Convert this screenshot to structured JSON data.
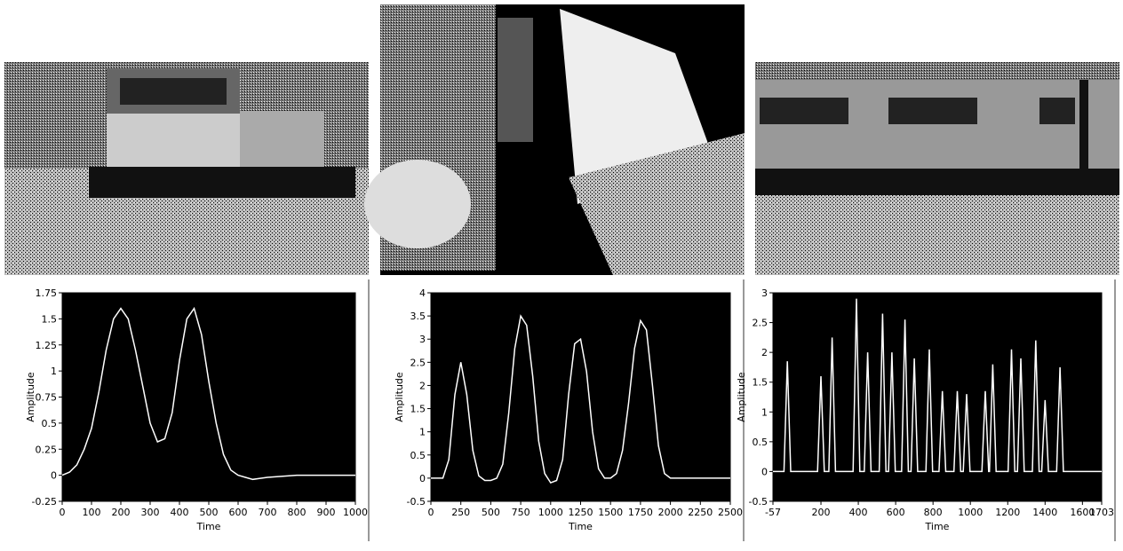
{
  "chart_data": [
    {
      "type": "line",
      "xlabel": "Time",
      "ylabel": "Amplitude",
      "color": "#ffffff",
      "x": [
        0,
        25,
        50,
        75,
        100,
        125,
        150,
        175,
        200,
        225,
        250,
        275,
        300,
        325,
        350,
        375,
        400,
        425,
        450,
        475,
        500,
        525,
        550,
        575,
        600,
        625,
        650,
        675,
        700,
        800,
        900,
        1000
      ],
      "values": [
        0,
        0.03,
        0.1,
        0.25,
        0.45,
        0.8,
        1.2,
        1.5,
        1.6,
        1.5,
        1.2,
        0.85,
        0.5,
        0.32,
        0.35,
        0.6,
        1.1,
        1.5,
        1.6,
        1.35,
        0.9,
        0.5,
        0.2,
        0.05,
        0,
        -0.02,
        -0.04,
        -0.03,
        -0.02,
        0,
        0,
        0
      ],
      "xlim": [
        0,
        1000
      ],
      "ylim": [
        -0.25,
        1.75
      ],
      "xticks": [
        0,
        100,
        200,
        300,
        400,
        500,
        600,
        700,
        800,
        900,
        1000
      ],
      "yticks": [
        -0.25,
        0,
        0.25,
        0.5,
        0.75,
        1,
        1.25,
        1.5,
        1.75
      ]
    },
    {
      "type": "line",
      "xlabel": "Time",
      "ylabel": "Amplitude",
      "color": "#ffffff",
      "x": [
        0,
        100,
        150,
        200,
        250,
        300,
        350,
        400,
        450,
        500,
        550,
        600,
        650,
        700,
        750,
        800,
        850,
        900,
        950,
        1000,
        1050,
        1100,
        1150,
        1200,
        1250,
        1300,
        1350,
        1400,
        1450,
        1500,
        1550,
        1600,
        1650,
        1700,
        1750,
        1800,
        1850,
        1900,
        1950,
        2000,
        2050,
        2500
      ],
      "values": [
        0,
        0,
        0.4,
        1.8,
        2.5,
        1.8,
        0.6,
        0.05,
        -0.05,
        -0.05,
        0,
        0.3,
        1.4,
        2.8,
        3.5,
        3.3,
        2.2,
        0.8,
        0.1,
        -0.1,
        -0.05,
        0.4,
        1.8,
        2.9,
        3.0,
        2.3,
        1.0,
        0.2,
        0,
        0,
        0.1,
        0.6,
        1.6,
        2.8,
        3.4,
        3.2,
        2.0,
        0.7,
        0.1,
        0,
        0,
        0
      ],
      "xlim": [
        0,
        2500
      ],
      "ylim": [
        -0.5,
        4
      ],
      "xticks": [
        0,
        250,
        500,
        750,
        1000,
        1250,
        1500,
        1750,
        2000,
        2250,
        2500
      ],
      "yticks": [
        -0.5,
        0,
        0.5,
        1,
        1.5,
        2,
        2.5,
        3,
        3.5,
        4
      ]
    },
    {
      "type": "line",
      "xlabel": "Time",
      "ylabel": "Amplitude",
      "color": "#ffffff",
      "x": [
        -57,
        2,
        20,
        38,
        182,
        200,
        218,
        242,
        260,
        278,
        372,
        390,
        408,
        432,
        450,
        468,
        512,
        530,
        548,
        562,
        580,
        598,
        632,
        650,
        668,
        682,
        700,
        718,
        762,
        780,
        798,
        832,
        850,
        868,
        912,
        930,
        948,
        962,
        980,
        998,
        1062,
        1080,
        1098,
        1102,
        1120,
        1138,
        1202,
        1220,
        1238,
        1252,
        1270,
        1288,
        1332,
        1350,
        1368,
        1382,
        1400,
        1418,
        1462,
        1480,
        1498,
        1703
      ],
      "values": [
        0,
        0,
        1.85,
        0,
        0,
        1.6,
        0,
        0,
        2.25,
        0,
        0,
        2.9,
        0,
        0,
        2.0,
        0,
        0,
        2.65,
        0,
        0,
        2.0,
        0,
        0,
        2.55,
        0,
        0,
        1.9,
        0,
        0,
        2.05,
        0,
        0,
        1.35,
        0,
        0,
        1.35,
        0,
        0,
        1.3,
        0,
        0,
        1.35,
        0,
        0,
        1.8,
        0,
        0,
        2.05,
        0,
        0,
        1.9,
        0,
        0,
        2.2,
        0,
        0,
        1.2,
        0,
        0,
        1.75,
        0,
        0
      ],
      "xlim": [
        -57,
        1703
      ],
      "ylim": [
        -0.5,
        3
      ],
      "xticks": [
        -57,
        200,
        400,
        600,
        800,
        1000,
        1200,
        1400,
        1600,
        1703
      ],
      "yticks": [
        -0.5,
        0,
        0.5,
        1,
        1.5,
        2,
        2.5,
        3
      ]
    }
  ]
}
